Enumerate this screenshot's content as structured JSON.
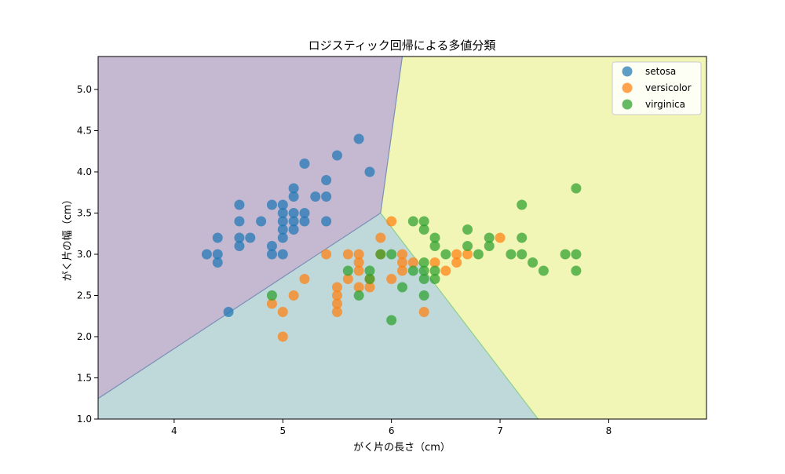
{
  "chart_data": {
    "type": "scatter",
    "title": "ロジスティック回帰による多値分類",
    "xlabel": "がく片の長さ（cm）",
    "ylabel": "がく片の幅（cm）",
    "xlim": [
      3.3,
      8.9
    ],
    "ylim": [
      1.0,
      5.4
    ],
    "xticks": [
      4,
      5,
      6,
      7,
      8
    ],
    "yticks": [
      1.0,
      1.5,
      2.0,
      2.5,
      3.0,
      3.5,
      4.0,
      4.5,
      5.0
    ],
    "grid": false,
    "legend_position": "top-right",
    "decision_regions": [
      {
        "class": "setosa",
        "color": "#c5b8d1"
      },
      {
        "class": "versicolor",
        "color": "#bfd9db"
      },
      {
        "class": "virginica",
        "color": "#f1f6b6"
      }
    ],
    "series": [
      {
        "name": "setosa",
        "color": "#1f77b4",
        "points": [
          [
            4.3,
            3.0
          ],
          [
            4.4,
            2.9
          ],
          [
            4.4,
            3.0
          ],
          [
            4.4,
            3.2
          ],
          [
            4.5,
            2.3
          ],
          [
            4.6,
            3.1
          ],
          [
            4.6,
            3.2
          ],
          [
            4.6,
            3.4
          ],
          [
            4.6,
            3.6
          ],
          [
            4.7,
            3.2
          ],
          [
            4.8,
            3.4
          ],
          [
            4.9,
            3.0
          ],
          [
            4.9,
            3.1
          ],
          [
            4.9,
            3.6
          ],
          [
            5.0,
            3.0
          ],
          [
            5.0,
            3.2
          ],
          [
            5.0,
            3.3
          ],
          [
            5.0,
            3.4
          ],
          [
            5.0,
            3.5
          ],
          [
            5.0,
            3.6
          ],
          [
            5.1,
            3.3
          ],
          [
            5.1,
            3.4
          ],
          [
            5.1,
            3.5
          ],
          [
            5.1,
            3.7
          ],
          [
            5.1,
            3.8
          ],
          [
            5.2,
            3.4
          ],
          [
            5.2,
            3.5
          ],
          [
            5.2,
            4.1
          ],
          [
            5.3,
            3.7
          ],
          [
            5.4,
            3.4
          ],
          [
            5.4,
            3.7
          ],
          [
            5.4,
            3.9
          ],
          [
            5.5,
            4.2
          ],
          [
            5.7,
            4.4
          ],
          [
            5.8,
            4.0
          ]
        ]
      },
      {
        "name": "versicolor",
        "color": "#ff7f0e",
        "points": [
          [
            4.9,
            2.4
          ],
          [
            5.0,
            2.0
          ],
          [
            5.0,
            2.3
          ],
          [
            5.1,
            2.5
          ],
          [
            5.2,
            2.7
          ],
          [
            5.4,
            3.0
          ],
          [
            5.5,
            2.3
          ],
          [
            5.5,
            2.4
          ],
          [
            5.5,
            2.5
          ],
          [
            5.5,
            2.6
          ],
          [
            5.6,
            2.7
          ],
          [
            5.6,
            3.0
          ],
          [
            5.7,
            2.6
          ],
          [
            5.7,
            2.8
          ],
          [
            5.7,
            2.9
          ],
          [
            5.7,
            3.0
          ],
          [
            5.8,
            2.6
          ],
          [
            5.8,
            2.7
          ],
          [
            5.9,
            3.0
          ],
          [
            5.9,
            3.2
          ],
          [
            6.0,
            2.7
          ],
          [
            6.0,
            3.4
          ],
          [
            6.1,
            2.8
          ],
          [
            6.1,
            2.9
          ],
          [
            6.1,
            3.0
          ],
          [
            6.2,
            2.9
          ],
          [
            6.3,
            2.3
          ],
          [
            6.4,
            2.9
          ],
          [
            6.5,
            2.8
          ],
          [
            6.6,
            2.9
          ],
          [
            6.6,
            3.0
          ],
          [
            6.7,
            3.0
          ],
          [
            7.0,
            3.2
          ]
        ]
      },
      {
        "name": "virginica",
        "color": "#2ca02c",
        "points": [
          [
            4.9,
            2.5
          ],
          [
            5.6,
            2.8
          ],
          [
            5.7,
            2.5
          ],
          [
            5.8,
            2.7
          ],
          [
            5.8,
            2.8
          ],
          [
            5.9,
            3.0
          ],
          [
            6.0,
            2.2
          ],
          [
            6.0,
            3.0
          ],
          [
            6.1,
            2.6
          ],
          [
            6.2,
            2.8
          ],
          [
            6.2,
            3.4
          ],
          [
            6.3,
            2.5
          ],
          [
            6.3,
            2.7
          ],
          [
            6.3,
            2.8
          ],
          [
            6.3,
            2.9
          ],
          [
            6.3,
            3.3
          ],
          [
            6.3,
            3.4
          ],
          [
            6.4,
            2.7
          ],
          [
            6.4,
            2.8
          ],
          [
            6.4,
            3.1
          ],
          [
            6.4,
            3.2
          ],
          [
            6.5,
            3.0
          ],
          [
            6.7,
            3.1
          ],
          [
            6.7,
            3.3
          ],
          [
            6.8,
            3.0
          ],
          [
            6.9,
            3.1
          ],
          [
            6.9,
            3.2
          ],
          [
            7.1,
            3.0
          ],
          [
            7.2,
            3.0
          ],
          [
            7.2,
            3.2
          ],
          [
            7.2,
            3.6
          ],
          [
            7.3,
            2.9
          ],
          [
            7.4,
            2.8
          ],
          [
            7.6,
            3.0
          ],
          [
            7.7,
            2.8
          ],
          [
            7.7,
            3.0
          ],
          [
            7.7,
            3.8
          ]
        ]
      }
    ]
  }
}
